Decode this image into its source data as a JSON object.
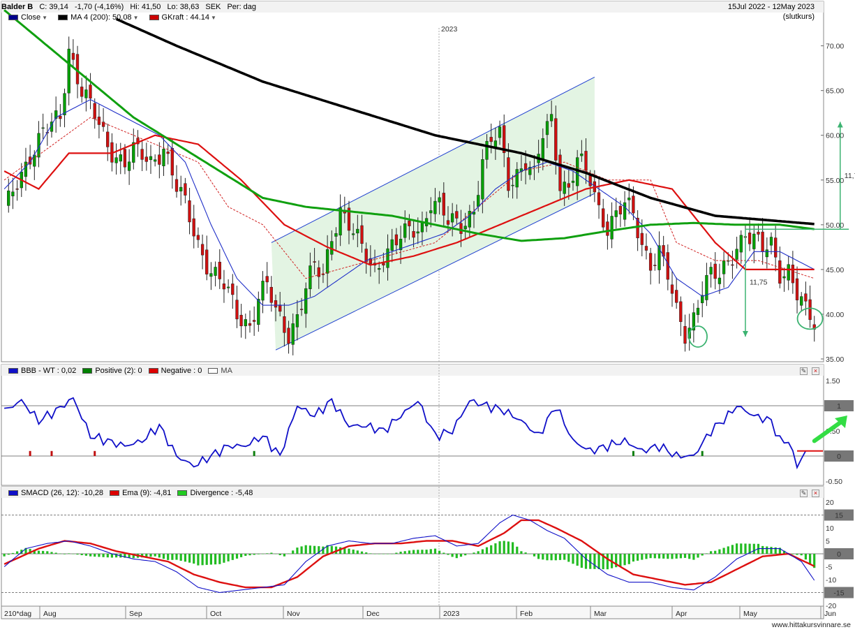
{
  "header": {
    "symbol": "Balder B",
    "close": "C: 39,14",
    "change": "-1,70 (-4,16%)",
    "high": "Hi: 41,50",
    "low": "Lo: 38,63",
    "currency": "SEK",
    "period": "Per: dag",
    "date_range": "15Jul 2022 - 12May 2023",
    "price_basis": "(slutkurs)"
  },
  "legend_main": [
    {
      "label": "Close",
      "color": "#00008b"
    },
    {
      "label": "MA 4 (200): 50.08",
      "color": "#000000"
    },
    {
      "label": "GKraft : 44.14",
      "color": "#cc0000"
    }
  ],
  "legend_bbb": [
    {
      "label": "BBB - WT : 0,02",
      "color": "#1010c8"
    },
    {
      "label": "Positive (2): 0",
      "color": "#008000"
    },
    {
      "label": "Negative : 0",
      "color": "#dd0000"
    },
    {
      "label": "MA",
      "color": "#ffffff"
    }
  ],
  "legend_smacd": [
    {
      "label": "SMACD (26, 12): -10,28",
      "color": "#1010c8"
    },
    {
      "label": "Ema (9): -4,81",
      "color": "#dd0000"
    },
    {
      "label": "Divergence : -5,48",
      "color": "#22cc22"
    }
  ],
  "year_marker": "2023",
  "x_axis": {
    "period_label": "210*dag",
    "months": [
      "Aug",
      "Sep",
      "Oct",
      "Nov",
      "Dec",
      "2023",
      "Feb",
      "Mar",
      "Apr",
      "May",
      "Jun"
    ]
  },
  "annotations": {
    "target_upper": "11,75",
    "target_lower": "11,75"
  },
  "footer": "www.hittakursvinnare.se",
  "colors": {
    "bull": "#00a000",
    "bear": "#d01010",
    "grid": "#c8c8c8",
    "channel_fill": "#e3f4e3",
    "annotation": "#3cb371"
  },
  "chart_data": [
    {
      "type": "candlestick",
      "title": "Balder B",
      "ylim": [
        35,
        72
      ],
      "y_ticks": [
        "70.00",
        "65.00",
        "60.00",
        "55.00",
        "50.00",
        "45.00",
        "40.00",
        "35.00"
      ],
      "y_tick_values": [
        70,
        65,
        60,
        55,
        50,
        45,
        40,
        35
      ],
      "close_anchors": [
        [
          0,
          51
        ],
        [
          3,
          55
        ],
        [
          6,
          58
        ],
        [
          9,
          60
        ],
        [
          13,
          62
        ],
        [
          15,
          70
        ],
        [
          18,
          65
        ],
        [
          21,
          62
        ],
        [
          24,
          59
        ],
        [
          28,
          57
        ],
        [
          30,
          58
        ],
        [
          34,
          57
        ],
        [
          37,
          59
        ],
        [
          40,
          54
        ],
        [
          42,
          52
        ],
        [
          45,
          48
        ],
        [
          48,
          45
        ],
        [
          51,
          43
        ],
        [
          54,
          40
        ],
        [
          57,
          39
        ],
        [
          59,
          42
        ],
        [
          61,
          43
        ],
        [
          63,
          40
        ],
        [
          66,
          38
        ],
        [
          68,
          40
        ],
        [
          70,
          43
        ],
        [
          72,
          45
        ],
        [
          74,
          44
        ],
        [
          76,
          49
        ],
        [
          78,
          52
        ],
        [
          80,
          50
        ],
        [
          83,
          47
        ],
        [
          86,
          45
        ],
        [
          88,
          47
        ],
        [
          91,
          48
        ],
        [
          94,
          49
        ],
        [
          97,
          50
        ],
        [
          99,
          53
        ],
        [
          101,
          52
        ],
        [
          103,
          50
        ],
        [
          106,
          50
        ],
        [
          109,
          52
        ],
        [
          111,
          57
        ],
        [
          113,
          59
        ],
        [
          115,
          60
        ],
        [
          117,
          55
        ],
        [
          119,
          56
        ],
        [
          121,
          57
        ],
        [
          123,
          55
        ],
        [
          125,
          60
        ],
        [
          127,
          62
        ],
        [
          129,
          55
        ],
        [
          131,
          54
        ],
        [
          133,
          57
        ],
        [
          136,
          55
        ],
        [
          138,
          52
        ],
        [
          140,
          50
        ],
        [
          142,
          51
        ],
        [
          144,
          52
        ],
        [
          146,
          51
        ],
        [
          148,
          48
        ],
        [
          150,
          46
        ],
        [
          152,
          47
        ],
        [
          154,
          44
        ],
        [
          156,
          40
        ],
        [
          158,
          38
        ],
        [
          160,
          40
        ],
        [
          162,
          43
        ],
        [
          164,
          44
        ],
        [
          166,
          44
        ],
        [
          168,
          46
        ],
        [
          170,
          48
        ],
        [
          172,
          49
        ],
        [
          174,
          48
        ],
        [
          176,
          47
        ],
        [
          178,
          48
        ],
        [
          180,
          45
        ],
        [
          182,
          45
        ],
        [
          184,
          42
        ],
        [
          186,
          40
        ],
        [
          188,
          39
        ]
      ],
      "ma_200": [
        [
          26,
          73
        ],
        [
          40,
          70
        ],
        [
          60,
          66
        ],
        [
          80,
          63
        ],
        [
          100,
          60
        ],
        [
          120,
          58
        ],
        [
          135,
          55.8
        ],
        [
          150,
          53
        ],
        [
          165,
          51
        ],
        [
          188,
          50.08
        ]
      ],
      "ma_slow_green": [
        [
          0,
          74
        ],
        [
          10,
          70
        ],
        [
          20,
          66
        ],
        [
          30,
          62
        ],
        [
          40,
          59
        ],
        [
          50,
          56
        ],
        [
          60,
          53
        ],
        [
          70,
          52
        ],
        [
          80,
          51.5
        ],
        [
          90,
          51
        ],
        [
          100,
          50
        ],
        [
          110,
          49
        ],
        [
          120,
          48.2
        ],
        [
          130,
          48.5
        ],
        [
          140,
          49.3
        ],
        [
          150,
          50
        ],
        [
          160,
          50.2
        ],
        [
          170,
          50
        ],
        [
          180,
          50
        ],
        [
          188,
          49.5
        ]
      ],
      "ma_mid_red": [
        [
          0,
          56
        ],
        [
          8,
          54
        ],
        [
          15,
          58
        ],
        [
          25,
          58
        ],
        [
          35,
          60
        ],
        [
          45,
          59
        ],
        [
          55,
          55
        ],
        [
          65,
          50
        ],
        [
          75,
          47.5
        ],
        [
          85,
          45.5
        ],
        [
          95,
          46.5
        ],
        [
          105,
          48
        ],
        [
          115,
          50
        ],
        [
          125,
          52
        ],
        [
          135,
          54
        ],
        [
          145,
          55
        ],
        [
          155,
          54
        ],
        [
          165,
          48
        ],
        [
          172,
          45
        ],
        [
          180,
          45
        ],
        [
          188,
          45
        ]
      ],
      "ma_fast_blue": [
        [
          0,
          54
        ],
        [
          6,
          57
        ],
        [
          12,
          62
        ],
        [
          20,
          64
        ],
        [
          28,
          62
        ],
        [
          36,
          60
        ],
        [
          42,
          57
        ],
        [
          48,
          50
        ],
        [
          54,
          44
        ],
        [
          60,
          41
        ],
        [
          66,
          41
        ],
        [
          72,
          42
        ],
        [
          78,
          44
        ],
        [
          84,
          46
        ],
        [
          90,
          47
        ],
        [
          96,
          48
        ],
        [
          102,
          49
        ],
        [
          108,
          51
        ],
        [
          114,
          54
        ],
        [
          120,
          56
        ],
        [
          126,
          57
        ],
        [
          132,
          56
        ],
        [
          138,
          54
        ],
        [
          144,
          52
        ],
        [
          150,
          49
        ],
        [
          156,
          44
        ],
        [
          162,
          42
        ],
        [
          168,
          43
        ],
        [
          174,
          47
        ],
        [
          180,
          47
        ],
        [
          188,
          45
        ]
      ],
      "step_line_red": [
        [
          0,
          55
        ],
        [
          20,
          62
        ],
        [
          25,
          61
        ],
        [
          35,
          59
        ],
        [
          45,
          57
        ],
        [
          52,
          52
        ],
        [
          60,
          50
        ],
        [
          65,
          47
        ],
        [
          70,
          44
        ],
        [
          85,
          46
        ],
        [
          100,
          48
        ],
        [
          110,
          52
        ],
        [
          120,
          56
        ],
        [
          130,
          57
        ],
        [
          140,
          55
        ],
        [
          150,
          55
        ],
        [
          156,
          48
        ],
        [
          165,
          46
        ],
        [
          175,
          46
        ],
        [
          188,
          44
        ]
      ],
      "channel": {
        "upper": [
          [
            62,
            48
          ],
          [
            137,
            66.5
          ]
        ],
        "lower": [
          [
            63,
            36
          ],
          [
            137,
            53.5
          ]
        ]
      },
      "target_arrow_up": {
        "x": 194,
        "from": 49.5,
        "to": 61.5
      },
      "target_arrow_down": {
        "x": 172,
        "from": 49.5,
        "to": 37.5
      },
      "horizontal_marker": {
        "from": 172,
        "to": 196,
        "y": 49.5
      },
      "circles": [
        {
          "x": 161,
          "y": 37.5
        },
        {
          "x": 187,
          "y": 39.5
        }
      ]
    },
    {
      "type": "line",
      "title": "BBB - WT",
      "ylim": [
        -0.5,
        1.5
      ],
      "y_ticks": [
        "1.50",
        "1",
        "0.50",
        "0",
        "-0.50"
      ],
      "y_tick_values": [
        1.5,
        1,
        0.5,
        0,
        -0.5
      ],
      "highlight_ticks": [
        1,
        0
      ],
      "values_anchors": [
        [
          0,
          0.9
        ],
        [
          4,
          1.1
        ],
        [
          8,
          0.7
        ],
        [
          12,
          0.9
        ],
        [
          16,
          1.15
        ],
        [
          20,
          0.4
        ],
        [
          24,
          0.3
        ],
        [
          28,
          0.2
        ],
        [
          32,
          0.3
        ],
        [
          36,
          0.6
        ],
        [
          40,
          0.0
        ],
        [
          44,
          -0.2
        ],
        [
          48,
          0.0
        ],
        [
          52,
          0.2
        ],
        [
          56,
          0.2
        ],
        [
          60,
          0.4
        ],
        [
          64,
          0.0
        ],
        [
          68,
          1.0
        ],
        [
          72,
          0.8
        ],
        [
          76,
          1.1
        ],
        [
          80,
          0.6
        ],
        [
          84,
          0.6
        ],
        [
          88,
          0.5
        ],
        [
          92,
          0.8
        ],
        [
          96,
          1.1
        ],
        [
          100,
          0.4
        ],
        [
          104,
          0.5
        ],
        [
          108,
          1.1
        ],
        [
          112,
          1.0
        ],
        [
          116,
          0.9
        ],
        [
          120,
          0.7
        ],
        [
          124,
          0.4
        ],
        [
          128,
          1.0
        ],
        [
          132,
          0.3
        ],
        [
          136,
          0.1
        ],
        [
          140,
          0.2
        ],
        [
          144,
          0.3
        ],
        [
          148,
          0.1
        ],
        [
          152,
          0.2
        ],
        [
          156,
          0.0
        ],
        [
          160,
          0.0
        ],
        [
          164,
          0.5
        ],
        [
          168,
          0.8
        ],
        [
          170,
          1.0
        ],
        [
          174,
          0.8
        ],
        [
          178,
          0.7
        ],
        [
          180,
          0.3
        ],
        [
          182,
          0.3
        ],
        [
          184,
          -0.2
        ],
        [
          186,
          0.1
        ]
      ],
      "red_line": {
        "from": 184,
        "to": 190,
        "y": 0.1
      },
      "negative_bars": [
        [
          6,
          0.1
        ],
        [
          11,
          0.1
        ],
        [
          21,
          0.1
        ]
      ],
      "positive_bars": [
        [
          58,
          0.1
        ],
        [
          146,
          0.1
        ],
        [
          162,
          0.1
        ]
      ],
      "signal_arrow": {
        "x_from": 188,
        "y_from": 0.3,
        "x_to": 195,
        "y_to": 0.75
      }
    },
    {
      "type": "line",
      "title": "SMACD (26, 12)",
      "ylim": [
        -20,
        20
      ],
      "y_ticks": [
        "20",
        "15",
        "10",
        "5",
        "0",
        "-5",
        "-10",
        "-15",
        "-20"
      ],
      "y_tick_values": [
        20,
        15,
        10,
        5,
        0,
        -5,
        -10,
        -15,
        -20
      ],
      "highlight_ticks": [
        15,
        0,
        -15
      ],
      "smacd_anchors": [
        [
          0,
          -5
        ],
        [
          5,
          2
        ],
        [
          10,
          4
        ],
        [
          15,
          5
        ],
        [
          20,
          3
        ],
        [
          25,
          0
        ],
        [
          30,
          -2
        ],
        [
          35,
          -3
        ],
        [
          40,
          -7
        ],
        [
          45,
          -13
        ],
        [
          50,
          -15
        ],
        [
          55,
          -14
        ],
        [
          60,
          -13
        ],
        [
          65,
          -12
        ],
        [
          70,
          -3
        ],
        [
          75,
          3
        ],
        [
          80,
          5
        ],
        [
          85,
          4
        ],
        [
          90,
          4
        ],
        [
          95,
          6
        ],
        [
          100,
          7
        ],
        [
          105,
          3
        ],
        [
          110,
          4
        ],
        [
          115,
          12
        ],
        [
          118,
          15
        ],
        [
          122,
          13
        ],
        [
          126,
          9
        ],
        [
          130,
          6
        ],
        [
          135,
          -2
        ],
        [
          140,
          -8
        ],
        [
          145,
          -11
        ],
        [
          150,
          -11
        ],
        [
          155,
          -13
        ],
        [
          160,
          -14
        ],
        [
          165,
          -9
        ],
        [
          170,
          -2
        ],
        [
          175,
          2
        ],
        [
          180,
          2
        ],
        [
          185,
          -3
        ],
        [
          188,
          -10.28
        ]
      ],
      "ema_anchors": [
        [
          0,
          -4
        ],
        [
          8,
          2
        ],
        [
          14,
          5
        ],
        [
          20,
          4
        ],
        [
          26,
          1
        ],
        [
          32,
          -1
        ],
        [
          38,
          -3
        ],
        [
          44,
          -8
        ],
        [
          50,
          -11
        ],
        [
          56,
          -13
        ],
        [
          62,
          -13
        ],
        [
          68,
          -9
        ],
        [
          74,
          -1
        ],
        [
          80,
          3
        ],
        [
          86,
          4
        ],
        [
          92,
          4
        ],
        [
          98,
          5
        ],
        [
          104,
          5
        ],
        [
          110,
          3
        ],
        [
          116,
          8
        ],
        [
          120,
          13
        ],
        [
          124,
          13
        ],
        [
          128,
          10
        ],
        [
          134,
          5
        ],
        [
          140,
          -2
        ],
        [
          146,
          -8
        ],
        [
          152,
          -10
        ],
        [
          158,
          -12
        ],
        [
          164,
          -11
        ],
        [
          170,
          -6
        ],
        [
          176,
          -1
        ],
        [
          182,
          0
        ],
        [
          188,
          -4.81
        ]
      ]
    }
  ]
}
